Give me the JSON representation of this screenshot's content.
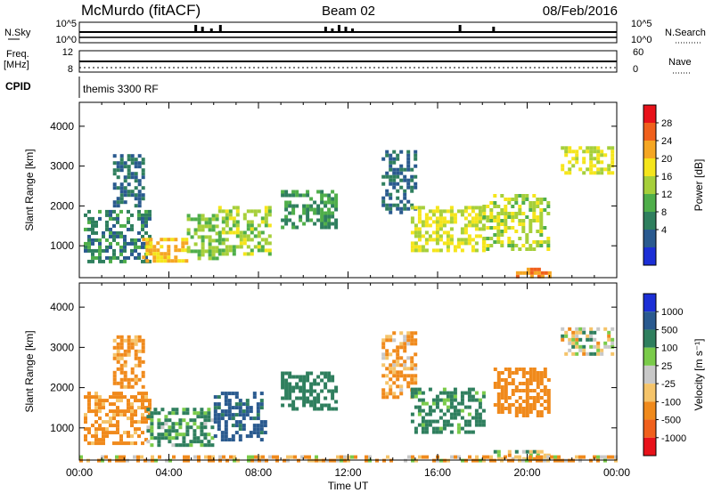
{
  "header": {
    "station": "McMurdo (fitACF)",
    "beam": "Beam 02",
    "date": "08/Feb/2016"
  },
  "top_panels": {
    "nsky_label": "N.Sky",
    "nsky_ticks": [
      "10^5",
      "10^0"
    ],
    "nsearch_label": "N.Search",
    "nsearch_ticks": [
      "10^5",
      "10^0"
    ],
    "freq_label_1": "Freq.",
    "freq_label_2": "[MHz]",
    "freq_ticks": [
      "12",
      "8"
    ],
    "nave_label": "Nave",
    "nave_ticks": [
      "60",
      "0"
    ],
    "cpid_label": "CPID",
    "cpid_value": "themis 3300 RF"
  },
  "chart_data": [
    {
      "type": "heatmap",
      "name": "power-panel",
      "ylabel": "Slant Range [km]",
      "y_ticks": [
        1000,
        2000,
        3000,
        4000
      ],
      "ylim": [
        200,
        4600
      ],
      "xlim": [
        0,
        24
      ],
      "colorbar": {
        "label": "Power [dB]",
        "ticks": [
          "28",
          "24",
          "20",
          "16",
          "12",
          "8",
          "4"
        ],
        "colors": [
          "#e8121a",
          "#f0601c",
          "#f5a623",
          "#f5e51b",
          "#a6cf3a",
          "#4fae4a",
          "#2f7f5e",
          "#2a5a8f",
          "#1c2fd6"
        ]
      },
      "regions": [
        {
          "t0": 0.2,
          "t1": 3.2,
          "r0": 600,
          "r1": 1900,
          "level": 12
        },
        {
          "t0": 2.8,
          "t1": 4.8,
          "r0": 600,
          "r1": 1200,
          "level": 26
        },
        {
          "t0": 4.8,
          "t1": 6.2,
          "r0": 700,
          "r1": 1800,
          "level": 18
        },
        {
          "t0": 6.2,
          "t1": 8.5,
          "r0": 800,
          "r1": 2000,
          "level": 20
        },
        {
          "t0": 1.5,
          "t1": 2.8,
          "r0": 2000,
          "r1": 3300,
          "level": 10
        },
        {
          "t0": 9.0,
          "t1": 11.5,
          "r0": 1500,
          "r1": 2400,
          "level": 14
        },
        {
          "t0": 13.5,
          "t1": 15.0,
          "r0": 1800,
          "r1": 3400,
          "level": 10
        },
        {
          "t0": 14.8,
          "t1": 18.0,
          "r0": 900,
          "r1": 2000,
          "level": 22
        },
        {
          "t0": 18.0,
          "t1": 21.0,
          "r0": 900,
          "r1": 2300,
          "level": 20
        },
        {
          "t0": 21.5,
          "t1": 23.8,
          "r0": 2800,
          "r1": 3500,
          "level": 22
        },
        {
          "t0": 19.5,
          "t1": 21.0,
          "r0": 250,
          "r1": 450,
          "level": 30
        }
      ]
    },
    {
      "type": "heatmap",
      "name": "velocity-panel",
      "ylabel": "Slant Range [km]",
      "y_ticks": [
        1000,
        2000,
        3000,
        4000
      ],
      "ylim": [
        200,
        4600
      ],
      "xlim": [
        0,
        24
      ],
      "x_ticks": [
        "00:00",
        "04:00",
        "08:00",
        "12:00",
        "16:00",
        "20:00",
        "00:00"
      ],
      "xlabel": "Time UT",
      "colorbar": {
        "label": "Velocity [m s⁻¹]",
        "ticks": [
          "1000",
          "500",
          "100",
          "25",
          "-25",
          "-100",
          "-500",
          "-1000"
        ],
        "colors": [
          "#1c2fd6",
          "#2a5a8f",
          "#2f7f5e",
          "#7acb4a",
          "#c8c8c8",
          "#f5c46a",
          "#f08a1c",
          "#f0601c",
          "#e8121a"
        ]
      },
      "regions": [
        {
          "t0": 0.2,
          "t1": 3.2,
          "r0": 600,
          "r1": 1900,
          "level": -200
        },
        {
          "t0": 3.0,
          "t1": 6.0,
          "r0": 600,
          "r1": 1500,
          "level": 150
        },
        {
          "t0": 6.0,
          "t1": 8.3,
          "r0": 700,
          "r1": 1900,
          "level": 600
        },
        {
          "t0": 1.5,
          "t1": 2.8,
          "r0": 2000,
          "r1": 3300,
          "level": -200
        },
        {
          "t0": 9.0,
          "t1": 11.5,
          "r0": 1500,
          "r1": 2400,
          "level": 300
        },
        {
          "t0": 13.5,
          "t1": 15.0,
          "r0": 1800,
          "r1": 3400,
          "level": -150
        },
        {
          "t0": 14.8,
          "t1": 18.0,
          "r0": 900,
          "r1": 2000,
          "level": 200
        },
        {
          "t0": 18.5,
          "t1": 21.0,
          "r0": 1300,
          "r1": 2500,
          "level": -300
        },
        {
          "t0": 21.5,
          "t1": 23.8,
          "r0": 2800,
          "r1": 3500,
          "level": 0
        },
        {
          "t0": 18.5,
          "t1": 21.0,
          "r0": 250,
          "r1": 450,
          "level": 0
        },
        {
          "t0": 0.0,
          "t1": 24.0,
          "r0": 200,
          "r1": 320,
          "level": -100
        }
      ]
    }
  ]
}
